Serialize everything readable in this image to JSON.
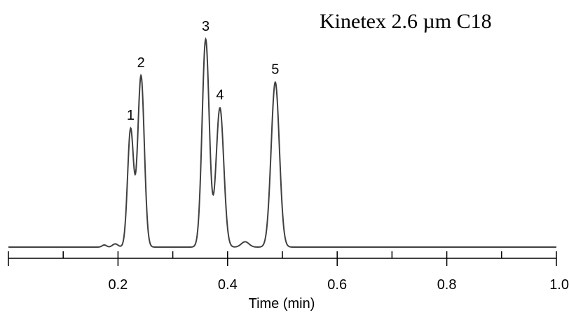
{
  "chart_data": {
    "type": "line",
    "title": "Kinetex 2.6 µm C18",
    "xlabel": "Time (min)",
    "ylabel": "",
    "xlim": [
      0.0,
      1.0
    ],
    "ylim": [
      0,
      1.0
    ],
    "x_ticks_major": [
      0.0,
      0.2,
      0.4,
      0.6,
      0.8,
      1.0
    ],
    "x_tick_labels": [
      "0.2",
      "0.4",
      "0.6",
      "0.8",
      "1.0"
    ],
    "x_ticks_minor": [
      0.1,
      0.3,
      0.5,
      0.7,
      0.9
    ],
    "grid": false,
    "series": [
      {
        "color": "#404040",
        "peaks": [
          {
            "label": "1",
            "x": 0.223,
            "height": 0.55,
            "width": 0.0055
          },
          {
            "label": "2",
            "x": 0.242,
            "height": 0.8,
            "width": 0.006
          },
          {
            "label": "3",
            "x": 0.36,
            "height": 0.97,
            "width": 0.0065
          },
          {
            "label": "4",
            "x": 0.386,
            "height": 0.65,
            "width": 0.007
          },
          {
            "label": "5",
            "x": 0.487,
            "height": 0.77,
            "width": 0.0075
          }
        ],
        "minor_bumps": [
          {
            "x": 0.175,
            "height": 0.01,
            "width": 0.004
          },
          {
            "x": 0.195,
            "height": 0.015,
            "width": 0.005
          },
          {
            "x": 0.432,
            "height": 0.025,
            "width": 0.007
          }
        ]
      }
    ]
  }
}
